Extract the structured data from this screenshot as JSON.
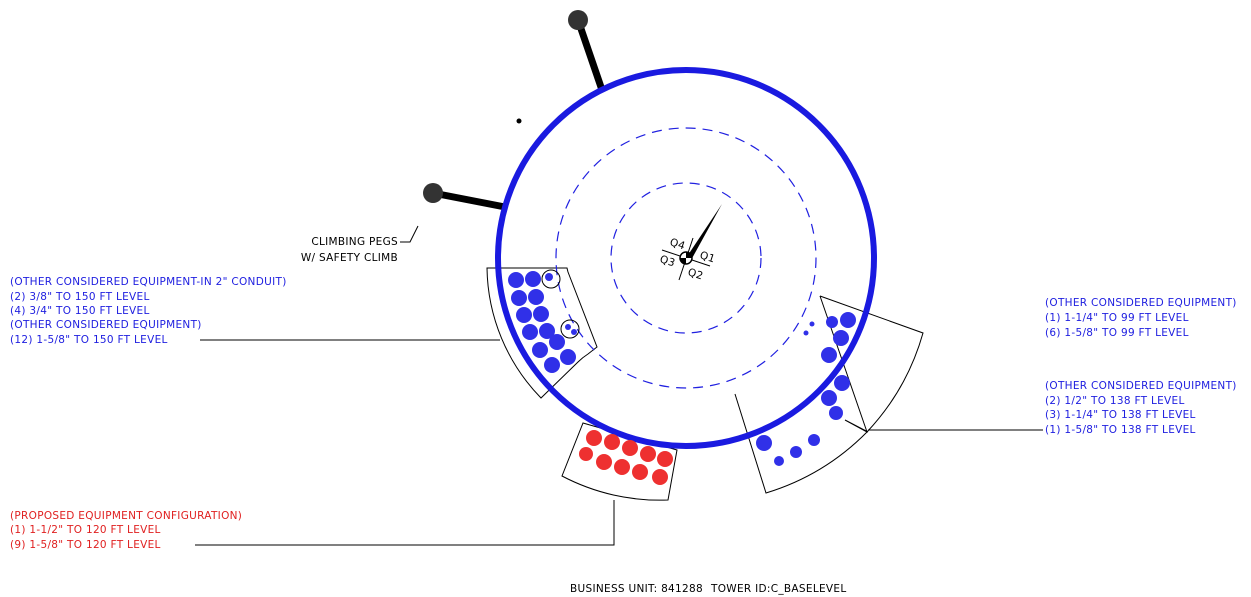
{
  "pegs_label": [
    "CLIMBING PEGS",
    "W/ SAFETY CLIMB"
  ],
  "quadrants": [
    "Q1",
    "Q2",
    "Q3",
    "Q4"
  ],
  "left_block": [
    "(OTHER CONSIDERED EQUIPMENT-IN 2\" CONDUIT)",
    "(2) 3/8\" TO 150 FT LEVEL",
    "(4) 3/4\" TO 150 FT LEVEL",
    "(OTHER CONSIDERED EQUIPMENT)",
    "(12) 1-5/8\" TO 150 FT LEVEL"
  ],
  "right_top_block": [
    "(OTHER CONSIDERED EQUIPMENT)",
    "(1) 1-1/4\" TO 99 FT LEVEL",
    "(6) 1-5/8\" TO 99 FT LEVEL"
  ],
  "right_bottom_block": [
    "(OTHER CONSIDERED EQUIPMENT)",
    "(2) 1/2\" TO 138 FT LEVEL",
    "(3) 1-1/4\" TO 138 FT LEVEL",
    "(1) 1-5/8\" TO 138 FT LEVEL"
  ],
  "proposed_block": [
    "(PROPOSED EQUIPMENT CONFIGURATION)",
    "(1) 1-1/2\" TO 120 FT LEVEL",
    "(9) 1-5/8\" TO 120 FT LEVEL"
  ],
  "footer": [
    "BUSINESS UNIT: 841288",
    "TOWER ID:C_BASELEVEL"
  ]
}
